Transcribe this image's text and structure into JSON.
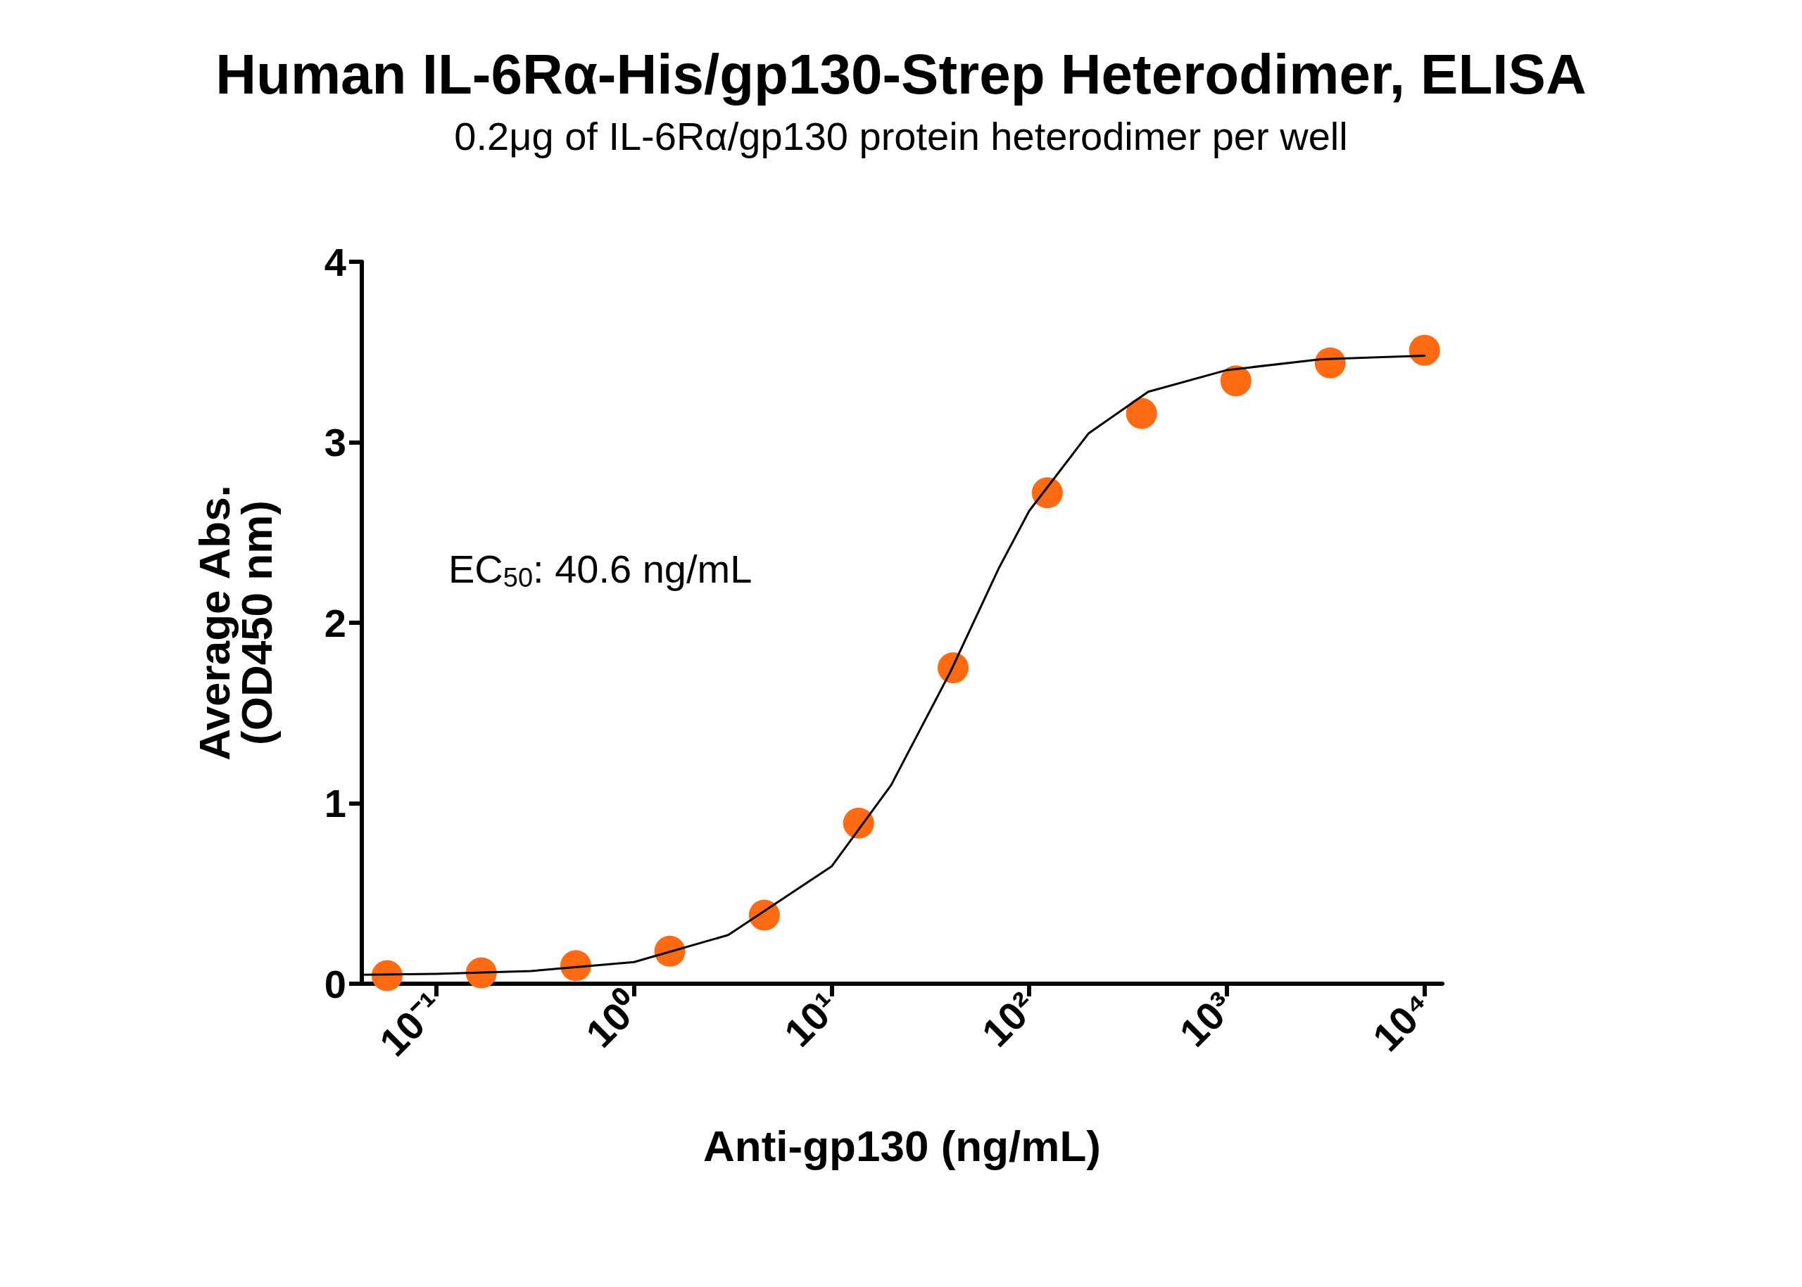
{
  "chart_data": {
    "type": "scatter",
    "title": "Human IL-6Rα-His/gp130-Strep Heterodimer, ELISA",
    "subtitle": "0.2μg of IL-6Rα/gp130 protein heterodimer per well",
    "xlabel": "Anti-gp130 (ng/mL)",
    "ylabel": "Average Abs.\n(OD450 nm)",
    "annotations": [
      "EC$_{50}$: 40.6 ng/mL"
    ],
    "log": "x",
    "grid": false,
    "marker": "circle",
    "xlim": [
      0.042,
      12300
    ],
    "ylim": [
      0,
      4
    ],
    "xticks": [
      {
        "value": 0.1,
        "label": "10⁻¹"
      },
      {
        "value": 1,
        "label": "10⁰"
      },
      {
        "value": 10,
        "label": "10¹"
      },
      {
        "value": 100,
        "label": "10²"
      },
      {
        "value": 1000,
        "label": "10³"
      },
      {
        "value": 10000,
        "label": "10⁴"
      }
    ],
    "yticks": [
      0,
      1,
      2,
      3,
      4
    ],
    "series": [
      {
        "type": "line",
        "marker": "none",
        "line_style": "solid",
        "color": "#000000",
        "x": [
          0.042,
          0.1,
          0.3,
          1,
          3,
          10,
          20,
          40,
          70,
          100,
          200,
          400,
          1000,
          3000,
          10000
        ],
        "values": [
          0.05,
          0.055,
          0.07,
          0.12,
          0.27,
          0.65,
          1.1,
          1.73,
          2.3,
          2.62,
          3.05,
          3.28,
          3.4,
          3.46,
          3.48
        ]
      },
      {
        "color": "#ff6a13",
        "x": [
          0.0564,
          0.169,
          0.508,
          1.52,
          4.57,
          13.7,
          41.2,
          123.5,
          370,
          1111,
          3333,
          10000
        ],
        "values": [
          0.045,
          0.06,
          0.1,
          0.18,
          0.38,
          0.89,
          1.75,
          2.72,
          3.16,
          3.34,
          3.44,
          3.51
        ]
      }
    ]
  }
}
